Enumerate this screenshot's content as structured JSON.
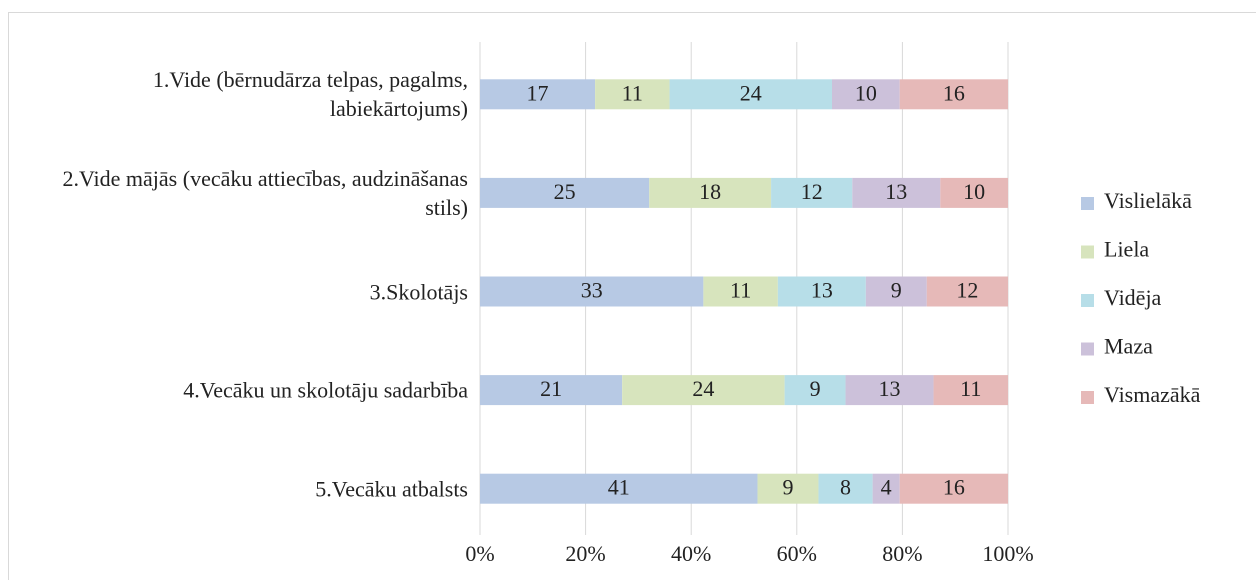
{
  "chart_data": {
    "type": "bar",
    "orientation": "horizontal",
    "stacking": "percent",
    "categories": [
      "1.Vide (bērnudārza telpas, pagalms, labiekārtojums)",
      "2.Vide mājās (vecāku attiecības, audzināšanas stils)",
      "3.Skolotājs",
      "4.Vecāku un skolotāju sadarbība",
      "5.Vecāku atbalsts"
    ],
    "series": [
      {
        "name": "Vislielākā",
        "color": "#b7c9e4",
        "values": [
          17,
          25,
          33,
          21,
          41
        ]
      },
      {
        "name": "Liela",
        "color": "#d7e4bd",
        "values": [
          11,
          18,
          11,
          24,
          9
        ]
      },
      {
        "name": "Vidēja",
        "color": "#b7dee8",
        "values": [
          24,
          12,
          13,
          9,
          8
        ]
      },
      {
        "name": "Maza",
        "color": "#ccc1da",
        "values": [
          10,
          13,
          9,
          13,
          4
        ]
      },
      {
        "name": "Vismazākā",
        "color": "#e6b9b8",
        "values": [
          16,
          10,
          12,
          11,
          16
        ]
      }
    ],
    "xlim": [
      0,
      100
    ],
    "xticks": [
      {
        "value": 0,
        "label": "0%"
      },
      {
        "value": 20,
        "label": "20%"
      },
      {
        "value": 40,
        "label": "40%"
      },
      {
        "value": 60,
        "label": "60%"
      },
      {
        "value": 80,
        "label": "80%"
      },
      {
        "value": 100,
        "label": "100%"
      }
    ],
    "grid": true,
    "legend": "right"
  }
}
